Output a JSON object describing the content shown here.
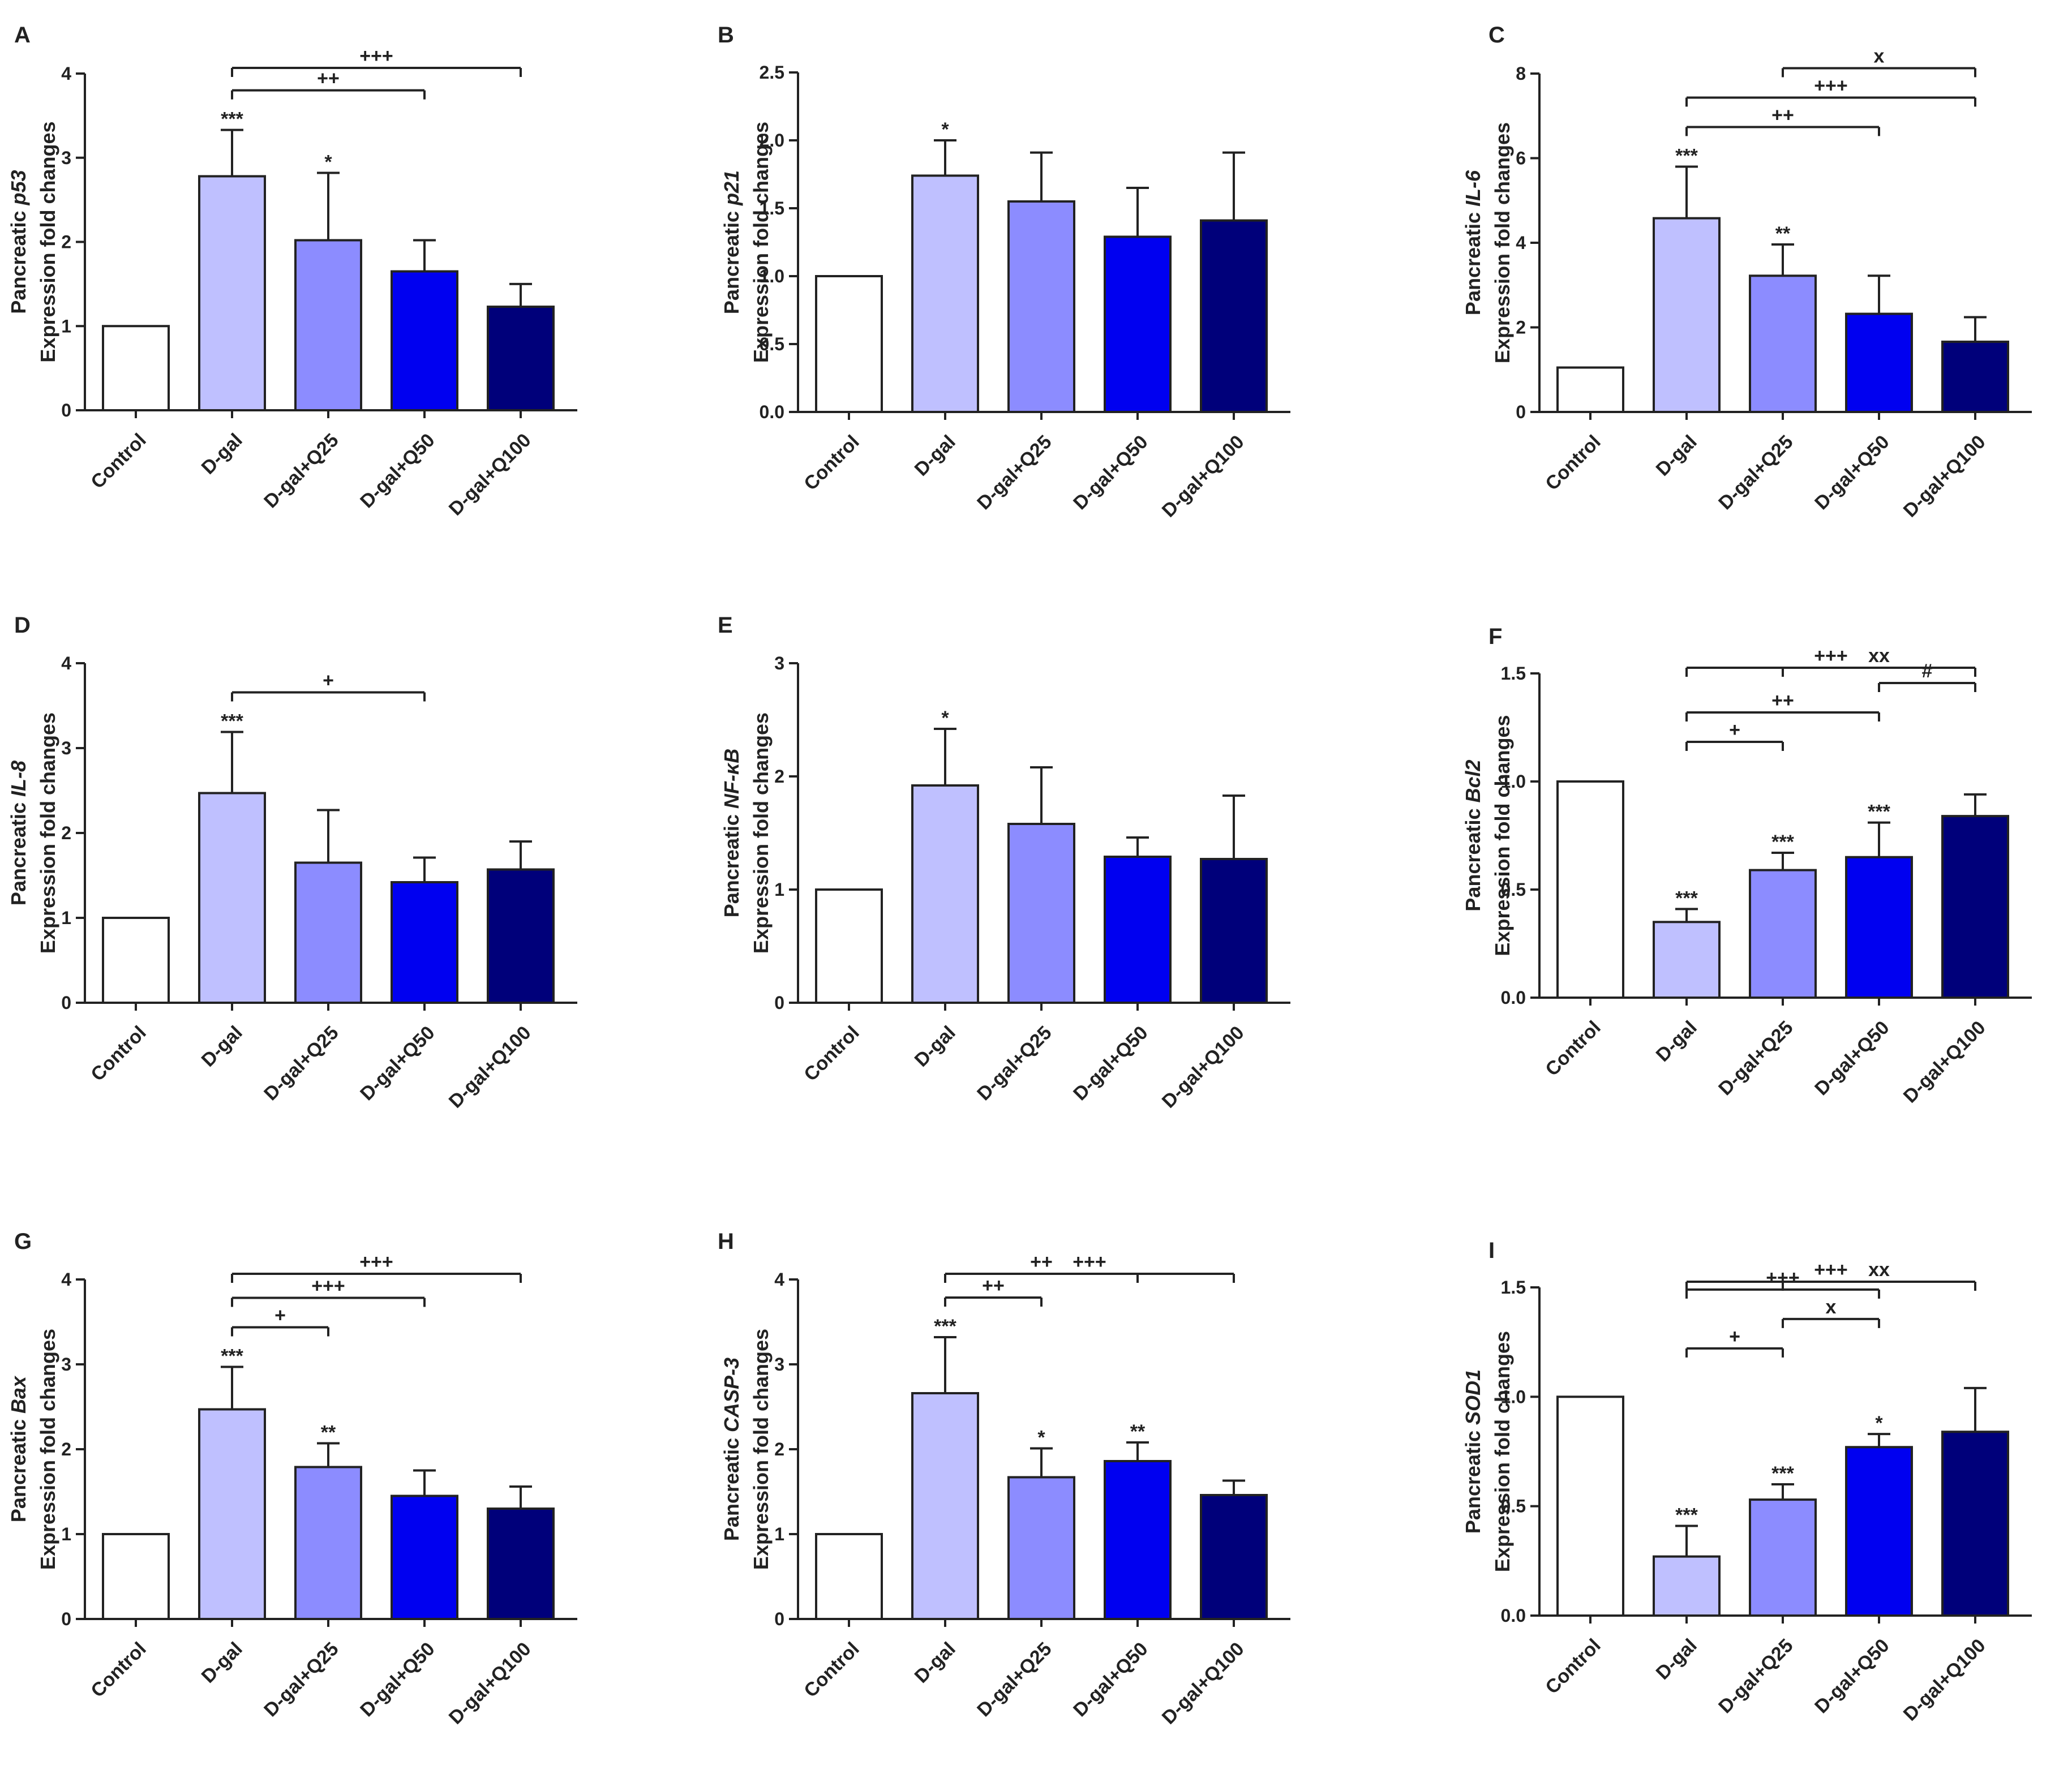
{
  "chart_data": [
    {
      "type": "bar",
      "panel": "A",
      "ylabel_prefix": "Pancreatic ",
      "ylabel_gene": "p53",
      "ylabel2": "Expression fold changes",
      "categories": [
        "Control",
        "D-gal",
        "D-gal+Q25",
        "D-gal+Q50",
        "D-gal+Q100"
      ],
      "values": [
        1.0,
        2.78,
        2.02,
        1.65,
        1.23
      ],
      "errors": [
        0,
        0.55,
        0.8,
        0.37,
        0.27
      ],
      "ylim": [
        0,
        4
      ],
      "yticks": [
        "0",
        "1",
        "2",
        "3",
        "4"
      ],
      "star_labels": [
        "",
        "***",
        "*",
        "",
        ""
      ],
      "brackets": [
        {
          "from": 1,
          "to": 3,
          "label": "++"
        },
        {
          "from": 1,
          "to": 4,
          "label": "+++"
        }
      ]
    },
    {
      "type": "bar",
      "panel": "B",
      "ylabel_prefix": "Pancreatic ",
      "ylabel_gene": "p21",
      "ylabel2": "Expression fold changes",
      "categories": [
        "Control",
        "D-gal",
        "D-gal+Q25",
        "D-gal+Q50",
        "D-gal+Q100"
      ],
      "values": [
        1.0,
        1.74,
        1.55,
        1.29,
        1.41
      ],
      "errors": [
        0,
        0.26,
        0.36,
        0.36,
        0.5
      ],
      "ylim": [
        0,
        2.5
      ],
      "yticks": [
        "0.0",
        "0.5",
        "1.0",
        "1.5",
        "2.0",
        "2.5"
      ],
      "star_labels": [
        "",
        "*",
        "",
        "",
        ""
      ],
      "brackets": []
    },
    {
      "type": "bar",
      "panel": "C",
      "ylabel_prefix": "Pancreatic ",
      "ylabel_gene": "IL-6",
      "ylabel2": "Expression fold changes",
      "categories": [
        "Control",
        "D-gal",
        "D-gal+Q25",
        "D-gal+Q50",
        "D-gal+Q100"
      ],
      "values": [
        1.05,
        4.58,
        3.22,
        2.32,
        1.66
      ],
      "errors": [
        0,
        1.22,
        0.74,
        0.9,
        0.58
      ],
      "ylim": [
        0,
        8
      ],
      "yticks": [
        "0",
        "2",
        "4",
        "6",
        "8"
      ],
      "star_labels": [
        "",
        "***",
        "**",
        "",
        ""
      ],
      "brackets": [
        {
          "from": 1,
          "to": 3,
          "label": "++"
        },
        {
          "from": 1,
          "to": 4,
          "label": "+++"
        },
        {
          "from": 2,
          "to": 4,
          "label": "x"
        }
      ]
    },
    {
      "type": "bar",
      "panel": "D",
      "ylabel_prefix": "Pancreatic ",
      "ylabel_gene": "IL-8",
      "ylabel2": "Expression fold changes",
      "categories": [
        "Control",
        "D-gal",
        "D-gal+Q25",
        "D-gal+Q50",
        "D-gal+Q100"
      ],
      "values": [
        1.0,
        2.47,
        1.65,
        1.42,
        1.57
      ],
      "errors": [
        0,
        0.72,
        0.62,
        0.29,
        0.33
      ],
      "ylim": [
        0,
        4
      ],
      "yticks": [
        "0",
        "1",
        "2",
        "3",
        "4"
      ],
      "star_labels": [
        "",
        "***",
        "",
        "",
        ""
      ],
      "brackets": [
        {
          "from": 1,
          "to": 3,
          "label": "+"
        }
      ]
    },
    {
      "type": "bar",
      "panel": "E",
      "ylabel_prefix": "Pancreatic ",
      "ylabel_gene": "NF-κB",
      "ylabel2": "Expression fold changes",
      "categories": [
        "Control",
        "D-gal",
        "D-gal+Q25",
        "D-gal+Q50",
        "D-gal+Q100"
      ],
      "values": [
        1.0,
        1.92,
        1.58,
        1.29,
        1.27
      ],
      "errors": [
        0,
        0.5,
        0.5,
        0.17,
        0.56
      ],
      "ylim": [
        0,
        3
      ],
      "yticks": [
        "0",
        "1",
        "2",
        "3"
      ],
      "star_labels": [
        "",
        "*",
        "",
        "",
        ""
      ],
      "brackets": []
    },
    {
      "type": "bar",
      "panel": "F",
      "ylabel_prefix": "Pancreatic ",
      "ylabel_gene": "Bcl2",
      "ylabel2": "Expression fold changes",
      "categories": [
        "Control",
        "D-gal",
        "D-gal+Q25",
        "D-gal+Q50",
        "D-gal+Q100"
      ],
      "values": [
        1.0,
        0.35,
        0.59,
        0.65,
        0.84
      ],
      "errors": [
        0,
        0.06,
        0.08,
        0.16,
        0.1
      ],
      "ylim": [
        0,
        1.5
      ],
      "yticks": [
        "0.0",
        "0.5",
        "1.0",
        "1.5"
      ],
      "star_labels": [
        "",
        "***",
        "***",
        "***",
        ""
      ],
      "brackets": [
        {
          "from": 1,
          "to": 2,
          "label": "+"
        },
        {
          "from": 1,
          "to": 3,
          "label": "++"
        },
        {
          "from": 3,
          "to": 4,
          "label": "#"
        },
        {
          "from": 2,
          "to": 4,
          "label": "xx"
        },
        {
          "from": 1,
          "to": 4,
          "label": "+++"
        }
      ]
    },
    {
      "type": "bar",
      "panel": "G",
      "ylabel_prefix": "Pancreatic ",
      "ylabel_gene": "Bax",
      "ylabel2": "Expression fold changes",
      "categories": [
        "Control",
        "D-gal",
        "D-gal+Q25",
        "D-gal+Q50",
        "D-gal+Q100"
      ],
      "values": [
        1.0,
        2.47,
        1.79,
        1.45,
        1.3
      ],
      "errors": [
        0,
        0.5,
        0.28,
        0.3,
        0.26
      ],
      "ylim": [
        0,
        4
      ],
      "yticks": [
        "0",
        "1",
        "2",
        "3",
        "4"
      ],
      "star_labels": [
        "",
        "***",
        "**",
        "",
        ""
      ],
      "brackets": [
        {
          "from": 1,
          "to": 2,
          "label": "+"
        },
        {
          "from": 1,
          "to": 3,
          "label": "+++"
        },
        {
          "from": 1,
          "to": 4,
          "label": "+++"
        }
      ]
    },
    {
      "type": "bar",
      "panel": "H",
      "ylabel_prefix": "Pancreatic ",
      "ylabel_gene": "CASP-3",
      "ylabel2": "Expression fold changes",
      "categories": [
        "Control",
        "D-gal",
        "D-gal+Q25",
        "D-gal+Q50",
        "D-gal+Q100"
      ],
      "values": [
        1.0,
        2.66,
        1.67,
        1.86,
        1.46
      ],
      "errors": [
        0,
        0.66,
        0.34,
        0.22,
        0.17
      ],
      "ylim": [
        0,
        4
      ],
      "yticks": [
        "0",
        "1",
        "2",
        "3",
        "4"
      ],
      "star_labels": [
        "",
        "***",
        "*",
        "**",
        ""
      ],
      "brackets": [
        {
          "from": 1,
          "to": 2,
          "label": "++"
        },
        {
          "from": 1,
          "to": 3,
          "label": "++"
        },
        {
          "from": 1,
          "to": 4,
          "label": "+++"
        }
      ]
    },
    {
      "type": "bar",
      "panel": "I",
      "ylabel_prefix": "Pancreatic ",
      "ylabel_gene": "SOD1",
      "ylabel2": "Expression fold changes",
      "categories": [
        "Control",
        "D-gal",
        "D-gal+Q25",
        "D-gal+Q50",
        "D-gal+Q100"
      ],
      "values": [
        1.0,
        0.27,
        0.53,
        0.77,
        0.84
      ],
      "errors": [
        0,
        0.14,
        0.07,
        0.06,
        0.2
      ],
      "ylim": [
        0,
        1.5
      ],
      "yticks": [
        "0.0",
        "0.5",
        "1.0",
        "1.5"
      ],
      "star_labels": [
        "",
        "***",
        "***",
        "*",
        ""
      ],
      "brackets": [
        {
          "from": 1,
          "to": 2,
          "label": "+"
        },
        {
          "from": 2,
          "to": 3,
          "label": "x"
        },
        {
          "from": 1,
          "to": 3,
          "label": "+++"
        },
        {
          "from": 2,
          "to": 4,
          "label": "xx"
        },
        {
          "from": 1,
          "to": 4,
          "label": "+++"
        }
      ]
    }
  ],
  "colors": {
    "bars": [
      "#ffffff",
      "#bfc0ff",
      "#8c8cff",
      "#0000f0",
      "#00007a"
    ],
    "axis": "#222222"
  }
}
